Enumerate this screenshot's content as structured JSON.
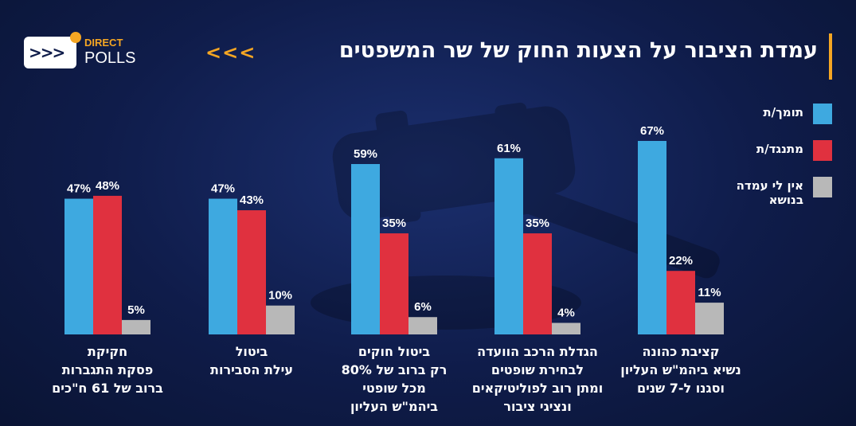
{
  "header": {
    "title": "עמדת הציבור על הצעות החוק של שר המשפטים",
    "title_arrows": "<<<"
  },
  "logo": {
    "line1": "DIRECT",
    "line2": "POLLS"
  },
  "colors": {
    "support": "#3ea9e0",
    "oppose": "#e0313f",
    "no_opinion": "#b8b8b8",
    "accent": "#f5a623"
  },
  "chart_data": {
    "type": "bar",
    "categories": [
      "קציבת כהונה נשיא ביהמ\"ש העליון וסגנו ל-7 שנים",
      "הגדלת הרכב הוועדה לבחירת שופטים ומתן רוב לפוליטיקאים ונציגי ציבור",
      "ביטול חוקים רק ברוב של 80% מכל שופטי ביהמ\"ש העליון",
      "ביטול עילת הסבירות",
      "חקיקת פסקת התגברות ברוב של 61 ח\"כים"
    ],
    "category_lines": [
      [
        "קציבת כהונה",
        "נשיא ביהמ\"ש העליון",
        "וסגנו ל-7 שנים"
      ],
      [
        "הגדלת הרכב הוועדה",
        "לבחירת שופטים",
        "ומתן רוב לפוליטיקאים",
        "ונציגי ציבור"
      ],
      [
        "ביטול חוקים",
        "רק ברוב של 80%",
        "מכל שופטי",
        "ביהמ\"ש העליון"
      ],
      [
        "ביטול",
        "עילת הסבירות"
      ],
      [
        "חקיקת",
        "פסקת התגברות",
        "ברוב של 61 ח\"כים"
      ]
    ],
    "series": [
      {
        "name": "תומך/ת",
        "values": [
          67,
          61,
          59,
          47,
          47
        ]
      },
      {
        "name": "מתנגד/ת",
        "values": [
          22,
          35,
          35,
          43,
          48
        ]
      },
      {
        "name": "אין לי עמדה בנושא",
        "values": [
          11,
          4,
          6,
          10,
          5
        ]
      }
    ],
    "legend_lines": [
      [
        "תומך/ת"
      ],
      [
        "מתנגד/ת"
      ],
      [
        "אין לי עמדה",
        "בנושא"
      ]
    ],
    "value_suffix": "%",
    "ylim": [
      0,
      70
    ],
    "grid": false,
    "legend_position": "top-right",
    "title": "עמדת הציבור על הצעות החוק של שר המשפטים",
    "xlabel": "",
    "ylabel": ""
  }
}
